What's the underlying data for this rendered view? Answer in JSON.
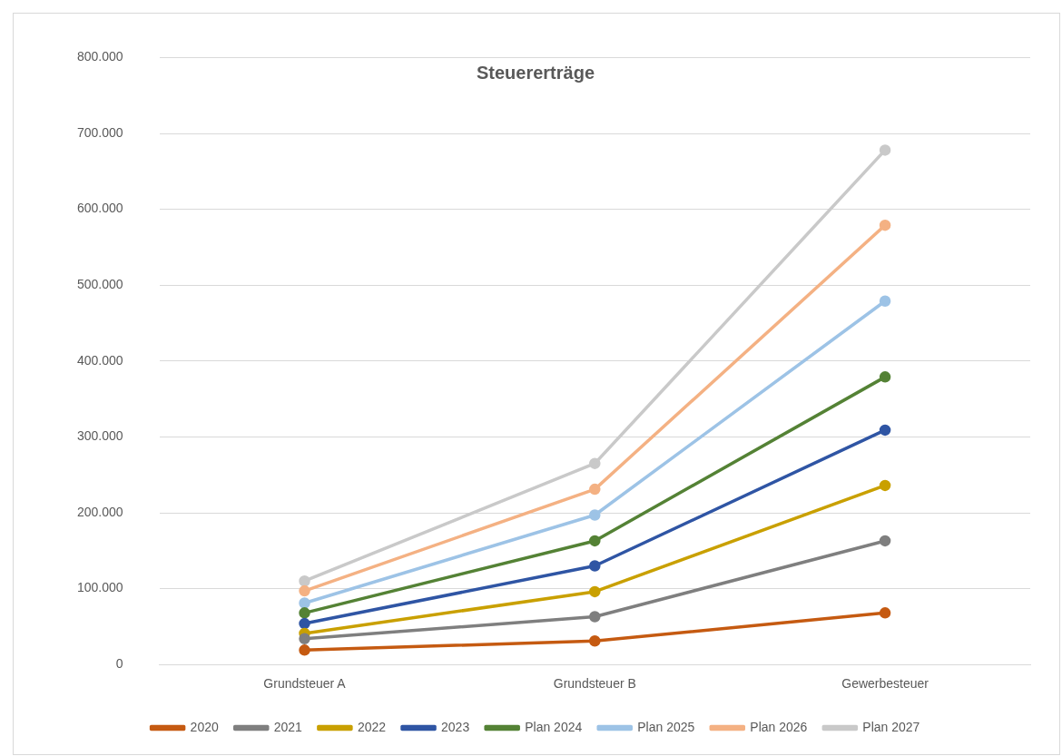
{
  "chart_data": {
    "type": "line",
    "title": "Steuererträge",
    "categories": [
      "Grundsteuer A",
      "Grundsteuer B",
      "Gewerbesteuer"
    ],
    "series": [
      {
        "name": "2020",
        "color": "#c55a11",
        "values": [
          19000,
          31000,
          68000
        ]
      },
      {
        "name": "2021",
        "color": "#7f7f7f",
        "values": [
          34000,
          63000,
          163000
        ]
      },
      {
        "name": "2022",
        "color": "#c9a000",
        "values": [
          41000,
          96000,
          236000
        ]
      },
      {
        "name": "2023",
        "color": "#2f55a4",
        "values": [
          54000,
          130000,
          309000
        ]
      },
      {
        "name": "Plan 2024",
        "color": "#548235",
        "values": [
          68000,
          163000,
          379000
        ]
      },
      {
        "name": "Plan 2025",
        "color": "#9dc3e6",
        "values": [
          81000,
          197000,
          479000
        ]
      },
      {
        "name": "Plan 2026",
        "color": "#f4b183",
        "values": [
          97000,
          231000,
          579000
        ]
      },
      {
        "name": "Plan 2027",
        "color": "#c9c9c9",
        "values": [
          110000,
          265000,
          678000
        ]
      }
    ],
    "ylim": [
      0,
      800000
    ],
    "yticks": [
      0,
      {
        "value": 100000,
        "label": "100.000"
      },
      {
        "value": 200000,
        "label": "200.000"
      },
      {
        "value": 300000,
        "label": "300.000"
      },
      {
        "value": 400000,
        "label": "400.000"
      },
      {
        "value": 500000,
        "label": "500.000"
      },
      {
        "value": 600000,
        "label": "600.000"
      },
      {
        "value": 700000,
        "label": "700.000"
      },
      {
        "value": 800000,
        "label": "800.000"
      }
    ],
    "grid": "y",
    "legend": "bottom",
    "marker": "circle",
    "line_style": "solid"
  }
}
